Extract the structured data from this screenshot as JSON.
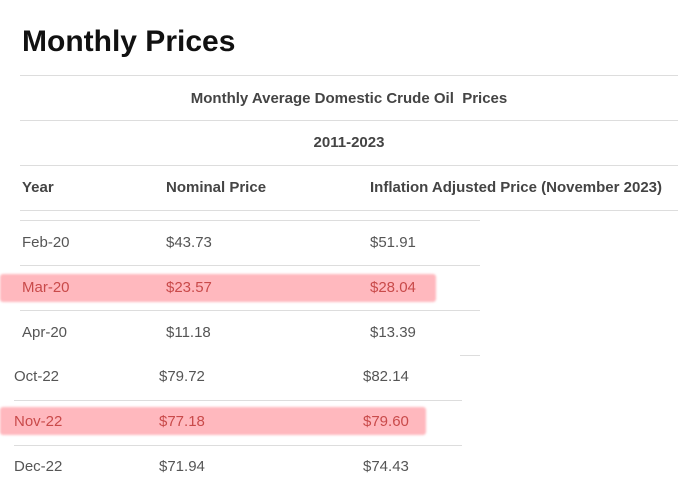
{
  "title": "Monthly Prices",
  "table": {
    "caption": "Monthly Average Domestic Crude Oil  Prices",
    "period": "2011-2023",
    "columns": [
      "Year",
      "Nominal Price",
      "Inflation Adjusted Price (November 2023)"
    ],
    "rows": [
      [
        "Feb-20",
        "$43.73",
        "$51.91"
      ],
      [
        "Mar-20",
        "$23.57",
        "$28.04"
      ],
      [
        "Apr-20",
        "$11.18",
        "$13.39"
      ],
      [
        "Oct-22",
        "$79.72",
        "$82.14"
      ],
      [
        "Nov-22",
        "$77.18",
        "$79.60"
      ],
      [
        "Dec-22",
        "$71.94",
        "$74.43"
      ]
    ]
  }
}
